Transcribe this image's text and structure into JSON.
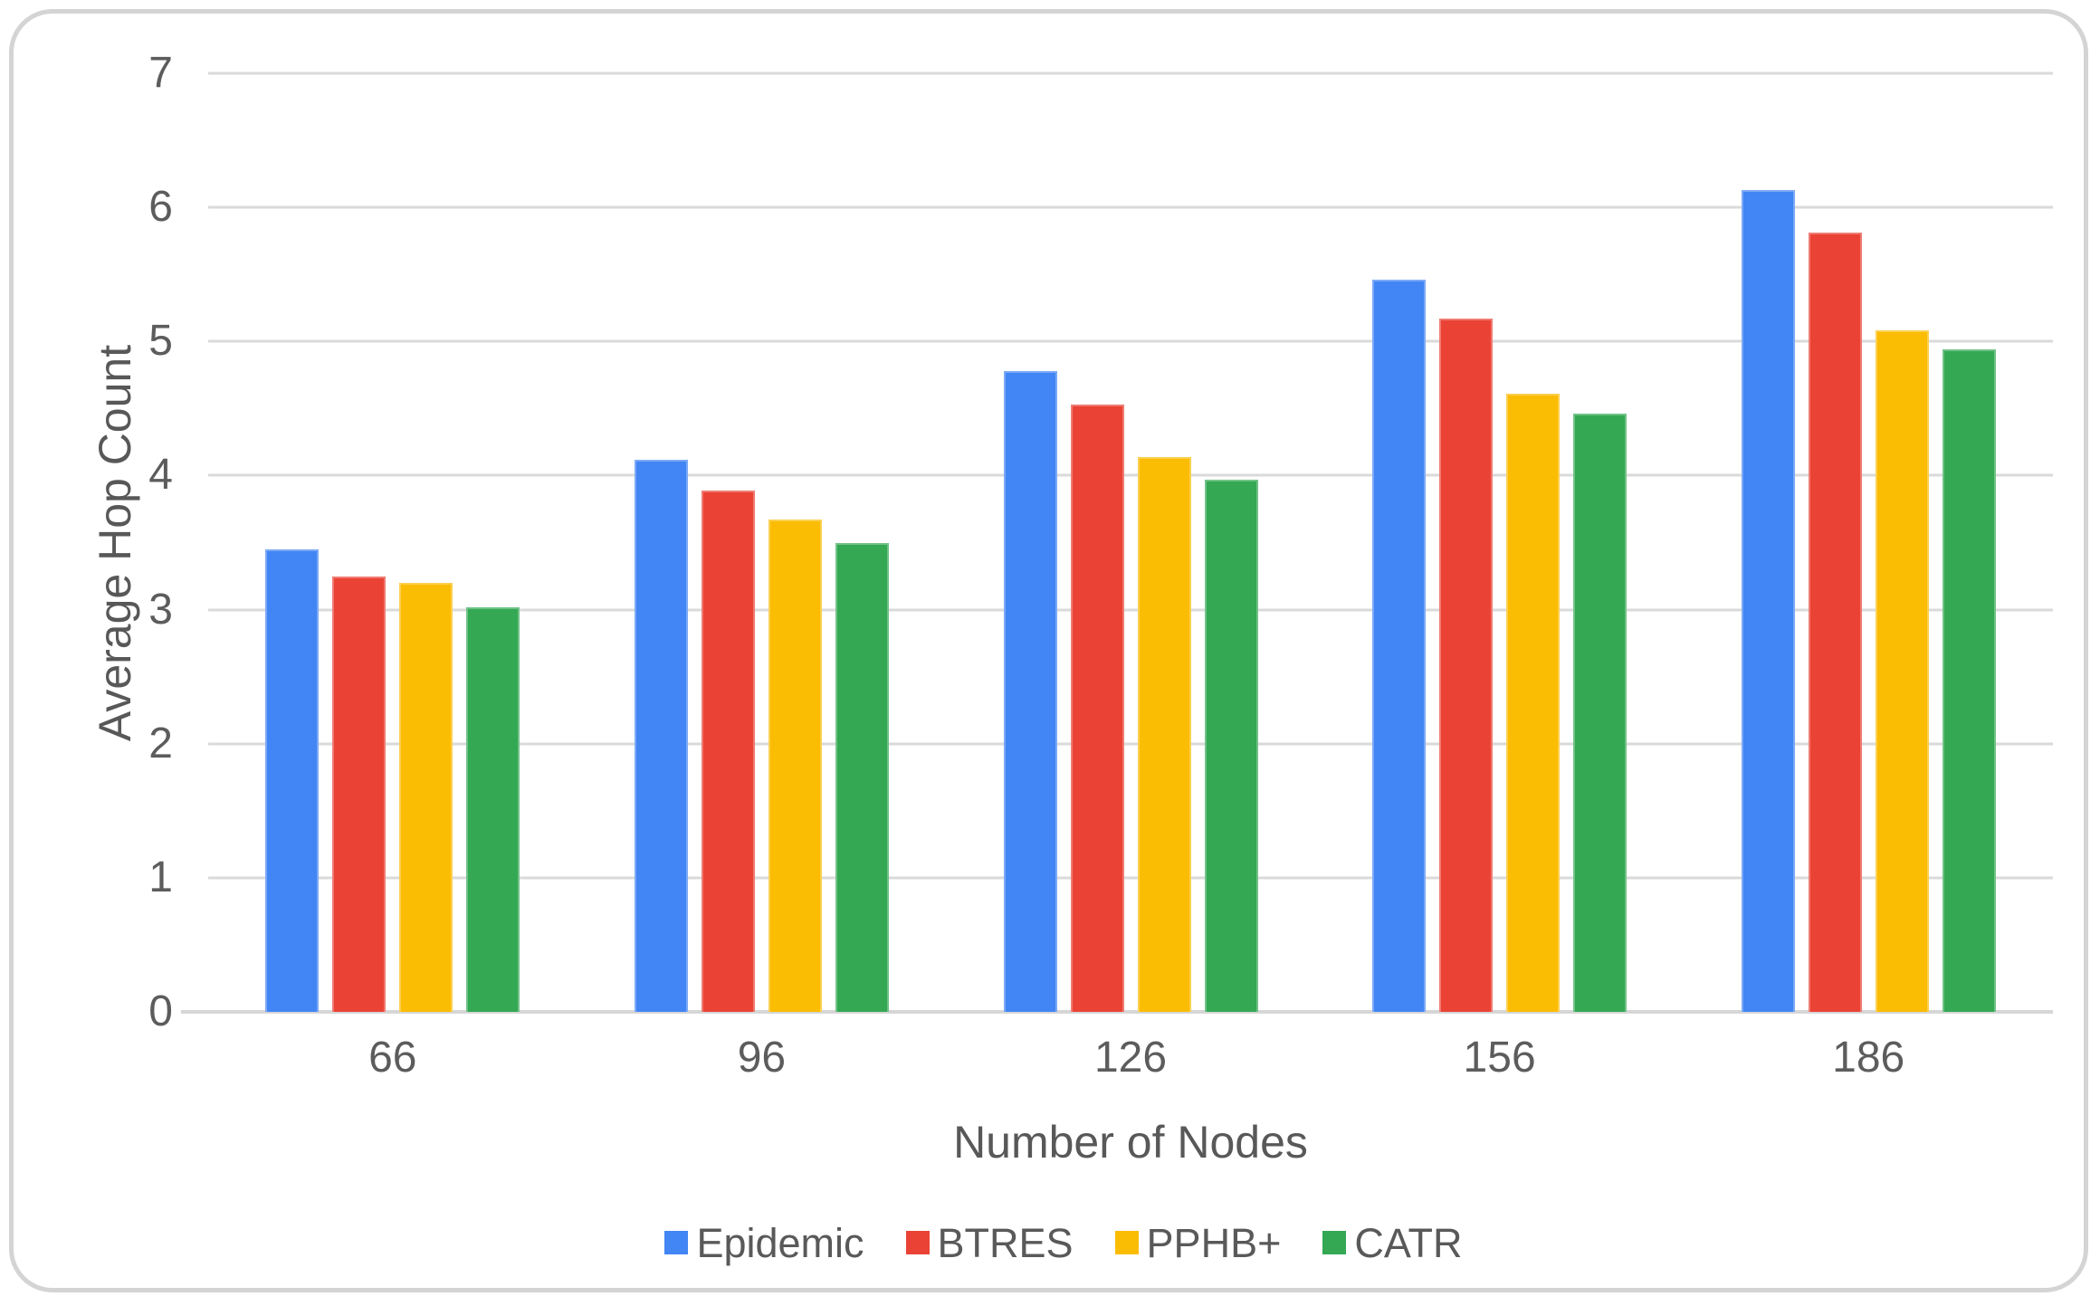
{
  "chart_data": {
    "type": "bar",
    "title": "",
    "xlabel": "Number of Nodes",
    "ylabel": "Average Hop Count",
    "categories": [
      "66",
      "96",
      "126",
      "156",
      "186"
    ],
    "series": [
      {
        "name": "Epidemic",
        "color": "#4285F4",
        "values": [
          3.45,
          4.12,
          4.78,
          5.46,
          6.13
        ]
      },
      {
        "name": "BTRES",
        "color": "#EA4335",
        "values": [
          3.25,
          3.89,
          4.53,
          5.17,
          5.81
        ]
      },
      {
        "name": "PPHB+",
        "color": "#FBBC04",
        "values": [
          3.2,
          3.67,
          4.14,
          4.61,
          5.08
        ]
      },
      {
        "name": "CATR",
        "color": "#34A853",
        "values": [
          3.02,
          3.5,
          3.97,
          4.46,
          4.94
        ]
      }
    ],
    "ylim": [
      0,
      7
    ],
    "yticks": [
      0,
      1,
      2,
      3,
      4,
      5,
      6,
      7
    ],
    "grid": "horizontal",
    "legend_position": "bottom",
    "colors": {
      "gridline": "#dadada",
      "axis_line": "#d6d6d6",
      "tick_text": "#5c5c5c",
      "axis_title_text": "#585858",
      "card_border": "#d4d4d4",
      "background": "#ffffff"
    }
  }
}
